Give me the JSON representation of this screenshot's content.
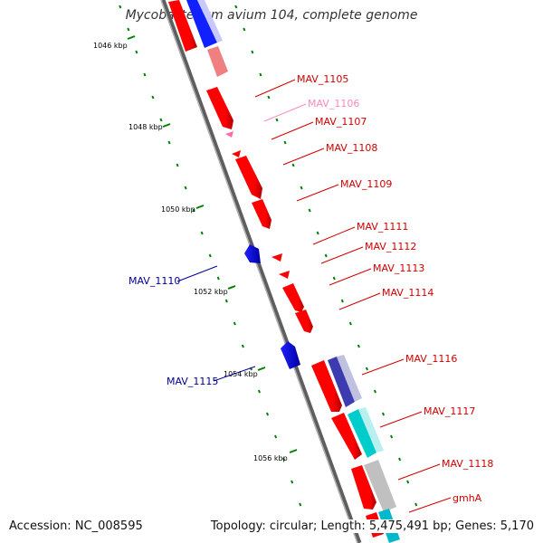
{
  "title": "Mycobacterium avium 104, complete genome",
  "footer": {
    "accession": "Accession: NC_008595",
    "topology": "Topology: circular; Length: 5,475,491 bp; Genes: 5,170"
  },
  "colors": {
    "backbone": "#808080",
    "forward_gene": "#ff0000",
    "reverse_gene": "#0000ff",
    "tick": "#008000",
    "label_red": "#d00000",
    "label_pink": "#ff88bb",
    "label_blue": "#000099"
  },
  "kbp_marks": [
    {
      "text": "1046 kbp"
    },
    {
      "text": "1048 kbp"
    },
    {
      "text": "1050 kbp"
    },
    {
      "text": "1052 kbp"
    },
    {
      "text": "1054 kbp"
    },
    {
      "text": "1056 kbp"
    }
  ],
  "gene_labels": [
    {
      "text": "MAV_1105",
      "color": "#d00000"
    },
    {
      "text": "MAV_1106",
      "color": "#ff88bb"
    },
    {
      "text": "MAV_1107",
      "color": "#d00000"
    },
    {
      "text": "MAV_1108",
      "color": "#d00000"
    },
    {
      "text": "MAV_1109",
      "color": "#d00000"
    },
    {
      "text": "MAV_1111",
      "color": "#d00000"
    },
    {
      "text": "MAV_1112",
      "color": "#d00000"
    },
    {
      "text": "MAV_1113",
      "color": "#d00000"
    },
    {
      "text": "MAV_1114",
      "color": "#d00000"
    },
    {
      "text": "MAV_1116",
      "color": "#d00000"
    },
    {
      "text": "MAV_1117",
      "color": "#d00000"
    },
    {
      "text": "MAV_1118",
      "color": "#d00000"
    },
    {
      "text": "gmhA",
      "color": "#d00000"
    },
    {
      "text": "MAV_1110",
      "color": "#000099"
    },
    {
      "text": "MAV_1115",
      "color": "#000099"
    }
  ]
}
